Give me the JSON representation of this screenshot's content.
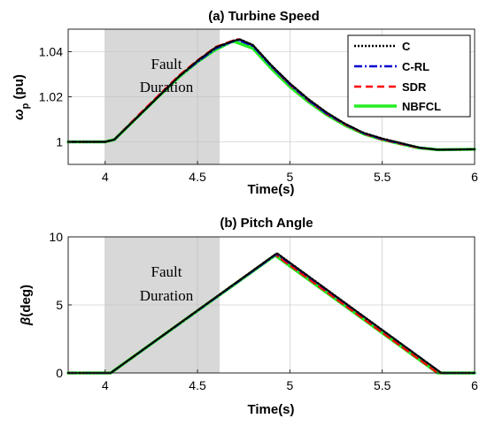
{
  "chart_data": [
    {
      "type": "line",
      "title": "(a)  Turbine Speed",
      "xlabel": "Time(s)",
      "ylabel": "ω_p (pu)",
      "ylabel_main": "ω",
      "ylabel_sub": "p",
      "ylabel_unit": " (pu)",
      "xlim": [
        3.8,
        6
      ],
      "ylim": [
        0.99,
        1.05
      ],
      "xticks": [
        4,
        4.5,
        5,
        5.5,
        6
      ],
      "xtick_labels": [
        "4",
        "4.5",
        "5",
        "5.5",
        "6"
      ],
      "yticks": [
        1,
        1.02,
        1.04
      ],
      "ytick_labels": [
        "1",
        "1.02",
        "1.04"
      ],
      "grid": true,
      "legend_position": "top-right",
      "shaded_region": {
        "x0": 4.0,
        "x1": 4.62,
        "label_lines": [
          "Fault",
          "Duration"
        ]
      },
      "series": [
        {
          "name": "C",
          "color": "#000000",
          "style": "dotted",
          "x": [
            3.8,
            4.0,
            4.05,
            4.1,
            4.2,
            4.3,
            4.4,
            4.5,
            4.6,
            4.7,
            4.73,
            4.8,
            4.9,
            5.0,
            5.1,
            5.2,
            5.3,
            5.4,
            5.5,
            5.6,
            5.7,
            5.8,
            6.0
          ],
          "y": [
            1.0,
            1.0,
            1.001,
            1.005,
            1.013,
            1.021,
            1.029,
            1.036,
            1.042,
            1.045,
            1.0455,
            1.043,
            1.034,
            1.026,
            1.019,
            1.013,
            1.008,
            1.004,
            1.0015,
            0.9995,
            0.9975,
            0.9965,
            0.9967
          ]
        },
        {
          "name": "C-RL",
          "color": "#0000cc",
          "style": "dashdot",
          "x": [
            3.8,
            4.0,
            4.05,
            4.1,
            4.2,
            4.3,
            4.4,
            4.5,
            4.6,
            4.7,
            4.72,
            4.8,
            4.9,
            5.0,
            5.1,
            5.2,
            5.3,
            5.4,
            5.5,
            5.6,
            5.7,
            5.8,
            6.0
          ],
          "y": [
            1.0,
            1.0,
            1.001,
            1.005,
            1.013,
            1.021,
            1.029,
            1.0355,
            1.0415,
            1.0448,
            1.0452,
            1.0425,
            1.0335,
            1.0255,
            1.0185,
            1.0125,
            1.0078,
            1.0038,
            1.0012,
            0.9993,
            0.9974,
            0.9965,
            0.9967
          ]
        },
        {
          "name": "SDR",
          "color": "#ff0000",
          "style": "dashed",
          "x": [
            3.8,
            4.0,
            4.05,
            4.1,
            4.2,
            4.3,
            4.4,
            4.5,
            4.6,
            4.7,
            4.72,
            4.8,
            4.9,
            5.0,
            5.1,
            5.2,
            5.3,
            5.4,
            5.5,
            5.6,
            5.7,
            5.8,
            6.0
          ],
          "y": [
            1.0,
            1.0,
            1.001,
            1.0052,
            1.0135,
            1.0215,
            1.0295,
            1.0362,
            1.0422,
            1.0452,
            1.0456,
            1.0428,
            1.0335,
            1.0253,
            1.0183,
            1.0123,
            1.0076,
            1.0036,
            1.001,
            0.9991,
            0.9973,
            0.9965,
            0.9967
          ]
        },
        {
          "name": "NBFCL",
          "color": "#22ee22",
          "style": "solid",
          "x": [
            3.8,
            4.0,
            4.05,
            4.1,
            4.2,
            4.3,
            4.4,
            4.5,
            4.6,
            4.68,
            4.7,
            4.8,
            4.9,
            5.0,
            5.1,
            5.2,
            5.3,
            5.4,
            5.5,
            5.6,
            5.7,
            5.8,
            6.0
          ],
          "y": [
            1.0,
            1.0,
            1.001,
            1.005,
            1.013,
            1.021,
            1.0288,
            1.0355,
            1.041,
            1.0443,
            1.0445,
            1.0415,
            1.0325,
            1.0245,
            1.0178,
            1.012,
            1.0073,
            1.0035,
            1.001,
            0.9991,
            0.9973,
            0.9965,
            0.9967
          ]
        }
      ]
    },
    {
      "type": "line",
      "title": "(b) Pitch Angle",
      "xlabel": "Time(s)",
      "ylabel": "β(deg)",
      "ylabel_main": "β",
      "ylabel_unit": "(deg)",
      "xlim": [
        3.8,
        6
      ],
      "ylim": [
        0,
        10
      ],
      "xticks": [
        4,
        4.5,
        5,
        5.5,
        6
      ],
      "xtick_labels": [
        "4",
        "4.5",
        "5",
        "5.5",
        "6"
      ],
      "yticks": [
        0,
        5,
        10
      ],
      "ytick_labels": [
        "0",
        "5",
        "10"
      ],
      "grid": true,
      "shaded_region": {
        "x0": 4.0,
        "x1": 4.62,
        "label_lines": [
          "Fault",
          "Duration"
        ]
      },
      "series": [
        {
          "name": "C",
          "color": "#000000",
          "style": "dotted",
          "x": [
            3.8,
            4.03,
            4.93,
            5.82,
            6.0
          ],
          "y": [
            0,
            0,
            8.8,
            0,
            0
          ]
        },
        {
          "name": "C-RL",
          "color": "#0000cc",
          "style": "dashdot",
          "x": [
            3.8,
            4.03,
            4.93,
            5.82,
            6.0
          ],
          "y": [
            0,
            0,
            8.75,
            0,
            0
          ]
        },
        {
          "name": "SDR",
          "color": "#ff0000",
          "style": "dashed",
          "x": [
            3.8,
            4.03,
            4.92,
            5.8,
            6.0
          ],
          "y": [
            0,
            0,
            8.7,
            0,
            0
          ]
        },
        {
          "name": "NBFCL",
          "color": "#22ee22",
          "style": "solid",
          "x": [
            3.8,
            4.03,
            4.92,
            5.8,
            6.0
          ],
          "y": [
            0,
            0,
            8.65,
            0,
            0
          ]
        }
      ]
    }
  ]
}
